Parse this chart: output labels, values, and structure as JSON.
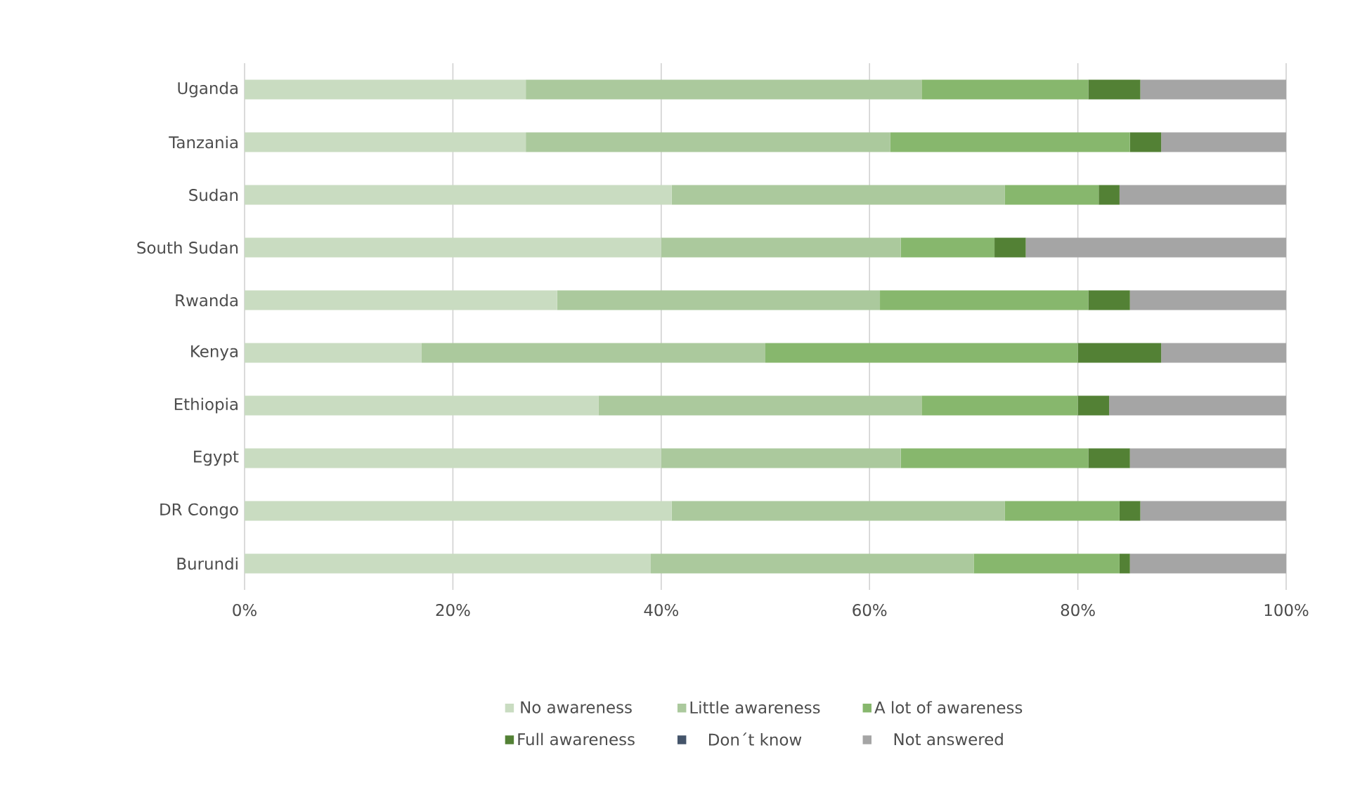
{
  "chart_data": {
    "type": "bar",
    "orientation": "horizontal",
    "stacked": true,
    "categories": [
      "Uganda",
      "Tanzania",
      "Sudan",
      "South Sudan",
      "Rwanda",
      "Kenya",
      "Ethiopia",
      "Egypt",
      "DR Congo",
      "Burundi"
    ],
    "series": [
      {
        "name": "No awareness",
        "color": "#c9dcc1",
        "values": [
          27,
          27,
          41,
          40,
          30,
          17,
          34,
          40,
          41,
          39
        ]
      },
      {
        "name": "Little awareness",
        "color": "#abc99d",
        "values": [
          38,
          35,
          32,
          23,
          31,
          33,
          31,
          23,
          32,
          31
        ]
      },
      {
        "name": "A lot of awareness",
        "color": "#87b76d",
        "values": [
          16,
          23,
          9,
          9,
          20,
          30,
          15,
          18,
          11,
          14
        ]
      },
      {
        "name": "Full awareness",
        "color": "#538135",
        "values": [
          5,
          3,
          2,
          3,
          4,
          8,
          3,
          4,
          2,
          1
        ]
      },
      {
        "name": "Don´t know",
        "color": "#44546a",
        "values": [
          0,
          0,
          0,
          0,
          0,
          0,
          0,
          0,
          0,
          0
        ]
      },
      {
        "name": "Not answered",
        "color": "#a5a5a5",
        "values": [
          14,
          12,
          16,
          25,
          15,
          12,
          17,
          15,
          14,
          15
        ]
      }
    ],
    "xlim": [
      0,
      100
    ],
    "xticks": [
      {
        "value": 0,
        "label": "0%"
      },
      {
        "value": 20,
        "label": "20%"
      },
      {
        "value": 40,
        "label": "40%"
      },
      {
        "value": 60,
        "label": "60%"
      },
      {
        "value": 80,
        "label": "80%"
      },
      {
        "value": 100,
        "label": "100%"
      }
    ],
    "grid": "x",
    "legend": "bottom"
  }
}
